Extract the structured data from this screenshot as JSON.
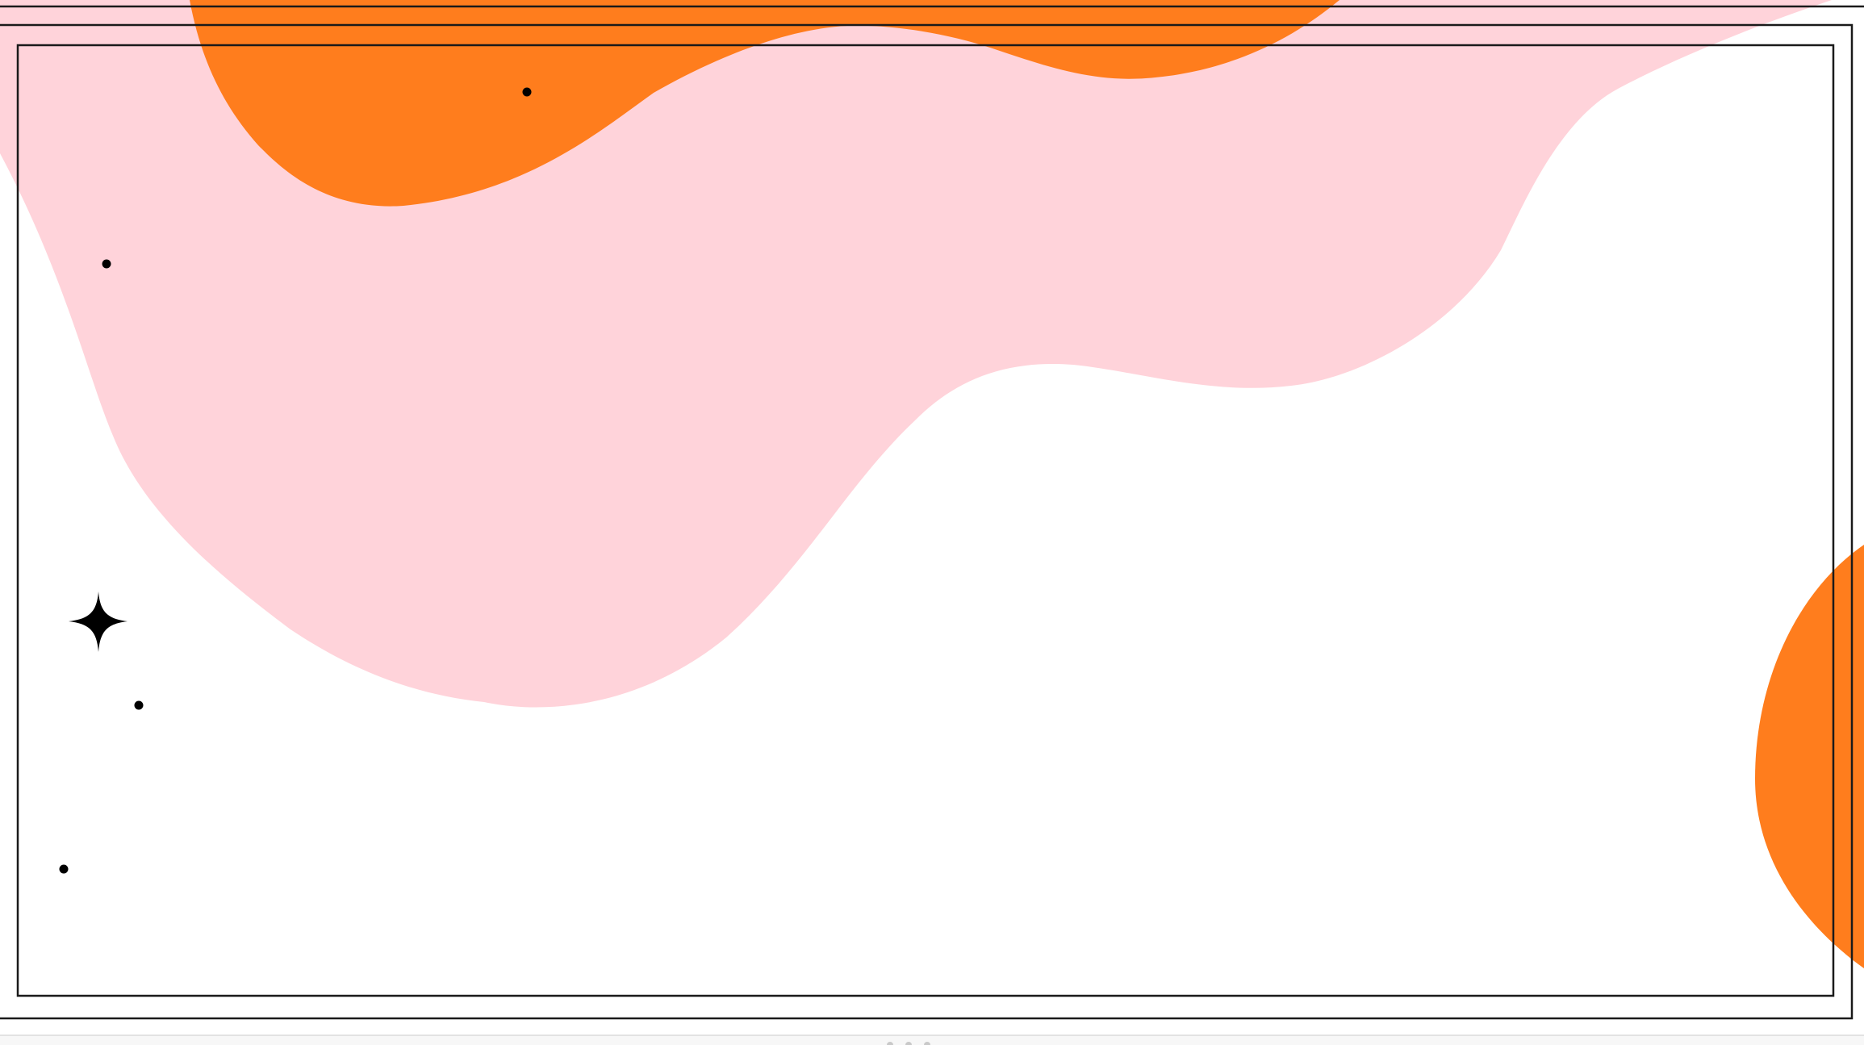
{
  "colors": {
    "background": "#ffffff",
    "pink_blob": "#ffd3da",
    "orange_blob": "#ff7d1d",
    "frame_line": "#1a1a1a",
    "frame_bottom": "#6f6f6f",
    "dots": "#000000",
    "sparkle": "#000000",
    "bottom_strip": "#f7f7f7"
  },
  "icons": {
    "sparkle": "four-point-star-icon",
    "resize_grip": "drag-handle-icon"
  }
}
